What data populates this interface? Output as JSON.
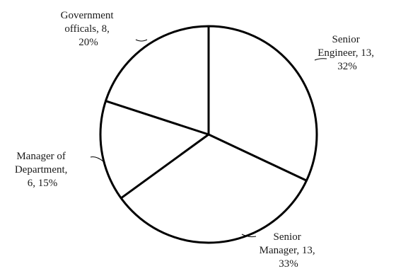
{
  "chart_data": {
    "type": "pie",
    "title": "",
    "slices": [
      {
        "category": "Senior Engineer",
        "value": 13,
        "percent": 32,
        "label_lines": [
          "Senior",
          "Engineer, 13,",
          "32%"
        ]
      },
      {
        "category": "Senior Manager",
        "value": 13,
        "percent": 33,
        "label_lines": [
          "Senior",
          "Manager, 13,",
          "33%"
        ]
      },
      {
        "category": "Manager of Department",
        "value": 6,
        "percent": 15,
        "label_lines": [
          "Manager of",
          "Department,",
          "6, 15%"
        ]
      },
      {
        "category": "Government officals",
        "value": 8,
        "percent": 20,
        "label_lines": [
          "Government",
          "officals, 8,",
          "20%"
        ]
      }
    ],
    "start_angle_deg": 0,
    "direction": "clockwise",
    "fill": "#ffffff",
    "stroke": "#000000",
    "legend": "none"
  }
}
